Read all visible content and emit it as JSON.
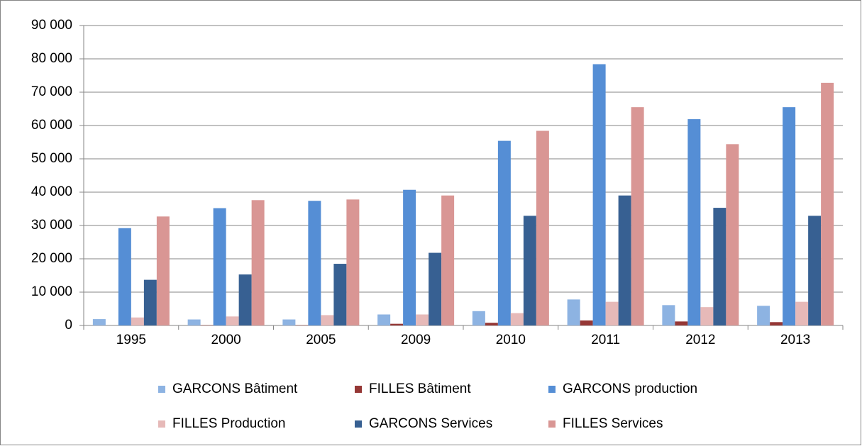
{
  "chart_data": {
    "type": "bar",
    "categories": [
      "1995",
      "2000",
      "2005",
      "2009",
      "2010",
      "2011",
      "2012",
      "2013"
    ],
    "series": [
      {
        "name": "GARCONS Bâtiment",
        "color": "#8db3e2",
        "values": [
          1900,
          1800,
          1800,
          3300,
          4300,
          7800,
          6100,
          5900
        ]
      },
      {
        "name": "FILLES Bâtiment",
        "color": "#953735",
        "values": [
          0,
          100,
          100,
          500,
          800,
          1500,
          1200,
          1000
        ]
      },
      {
        "name": "GARCONS production",
        "color": "#558ed5",
        "values": [
          29200,
          35200,
          37400,
          40700,
          55400,
          78400,
          61900,
          65500
        ]
      },
      {
        "name": "FILLES Production",
        "color": "#e6b9b8",
        "values": [
          2400,
          2700,
          3100,
          3300,
          3700,
          7100,
          5500,
          7100
        ]
      },
      {
        "name": "GARCONS Services",
        "color": "#376092",
        "values": [
          13700,
          15300,
          18500,
          21800,
          32900,
          39000,
          35300,
          32900
        ]
      },
      {
        "name": "FILLES Services",
        "color": "#d99694",
        "values": [
          32700,
          37600,
          37800,
          39000,
          58400,
          65500,
          54400,
          72800
        ]
      }
    ],
    "ylim": [
      0,
      90000
    ],
    "yticks": [
      0,
      {
        "value": 10000,
        "label": "10 000"
      },
      {
        "value": 20000,
        "label": "20 000"
      },
      {
        "value": 30000,
        "label": "30 000"
      },
      {
        "value": 40000,
        "label": "40 000"
      },
      {
        "value": 50000,
        "label": "50 000"
      },
      {
        "value": 60000,
        "label": "60 000"
      },
      {
        "value": 70000,
        "label": "70 000"
      },
      {
        "value": 80000,
        "label": "80 000"
      },
      {
        "value": 90000,
        "label": "90 000"
      }
    ],
    "grid": true,
    "legend": "bottom"
  }
}
